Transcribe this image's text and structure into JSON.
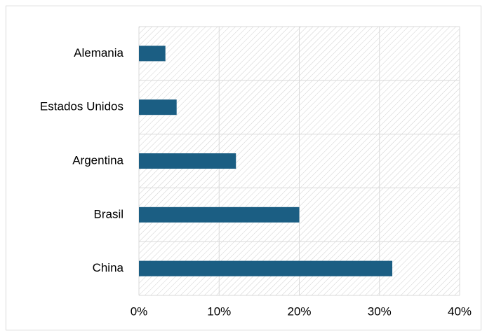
{
  "chart_data": {
    "type": "bar",
    "orientation": "horizontal",
    "categories": [
      "Alemania",
      "Estados Unidos",
      "Argentina",
      "Brasil",
      "China"
    ],
    "values": [
      3.3,
      4.7,
      12.1,
      20.0,
      31.6
    ],
    "color": "#1b5e83",
    "xlim": [
      0,
      40
    ],
    "xticks": [
      {
        "value": 0,
        "label": "0%"
      },
      {
        "value": 10,
        "label": "10%"
      },
      {
        "value": 20,
        "label": "20%"
      },
      {
        "value": 30,
        "label": "30%"
      },
      {
        "value": 40,
        "label": "40%"
      }
    ],
    "grid": true
  }
}
